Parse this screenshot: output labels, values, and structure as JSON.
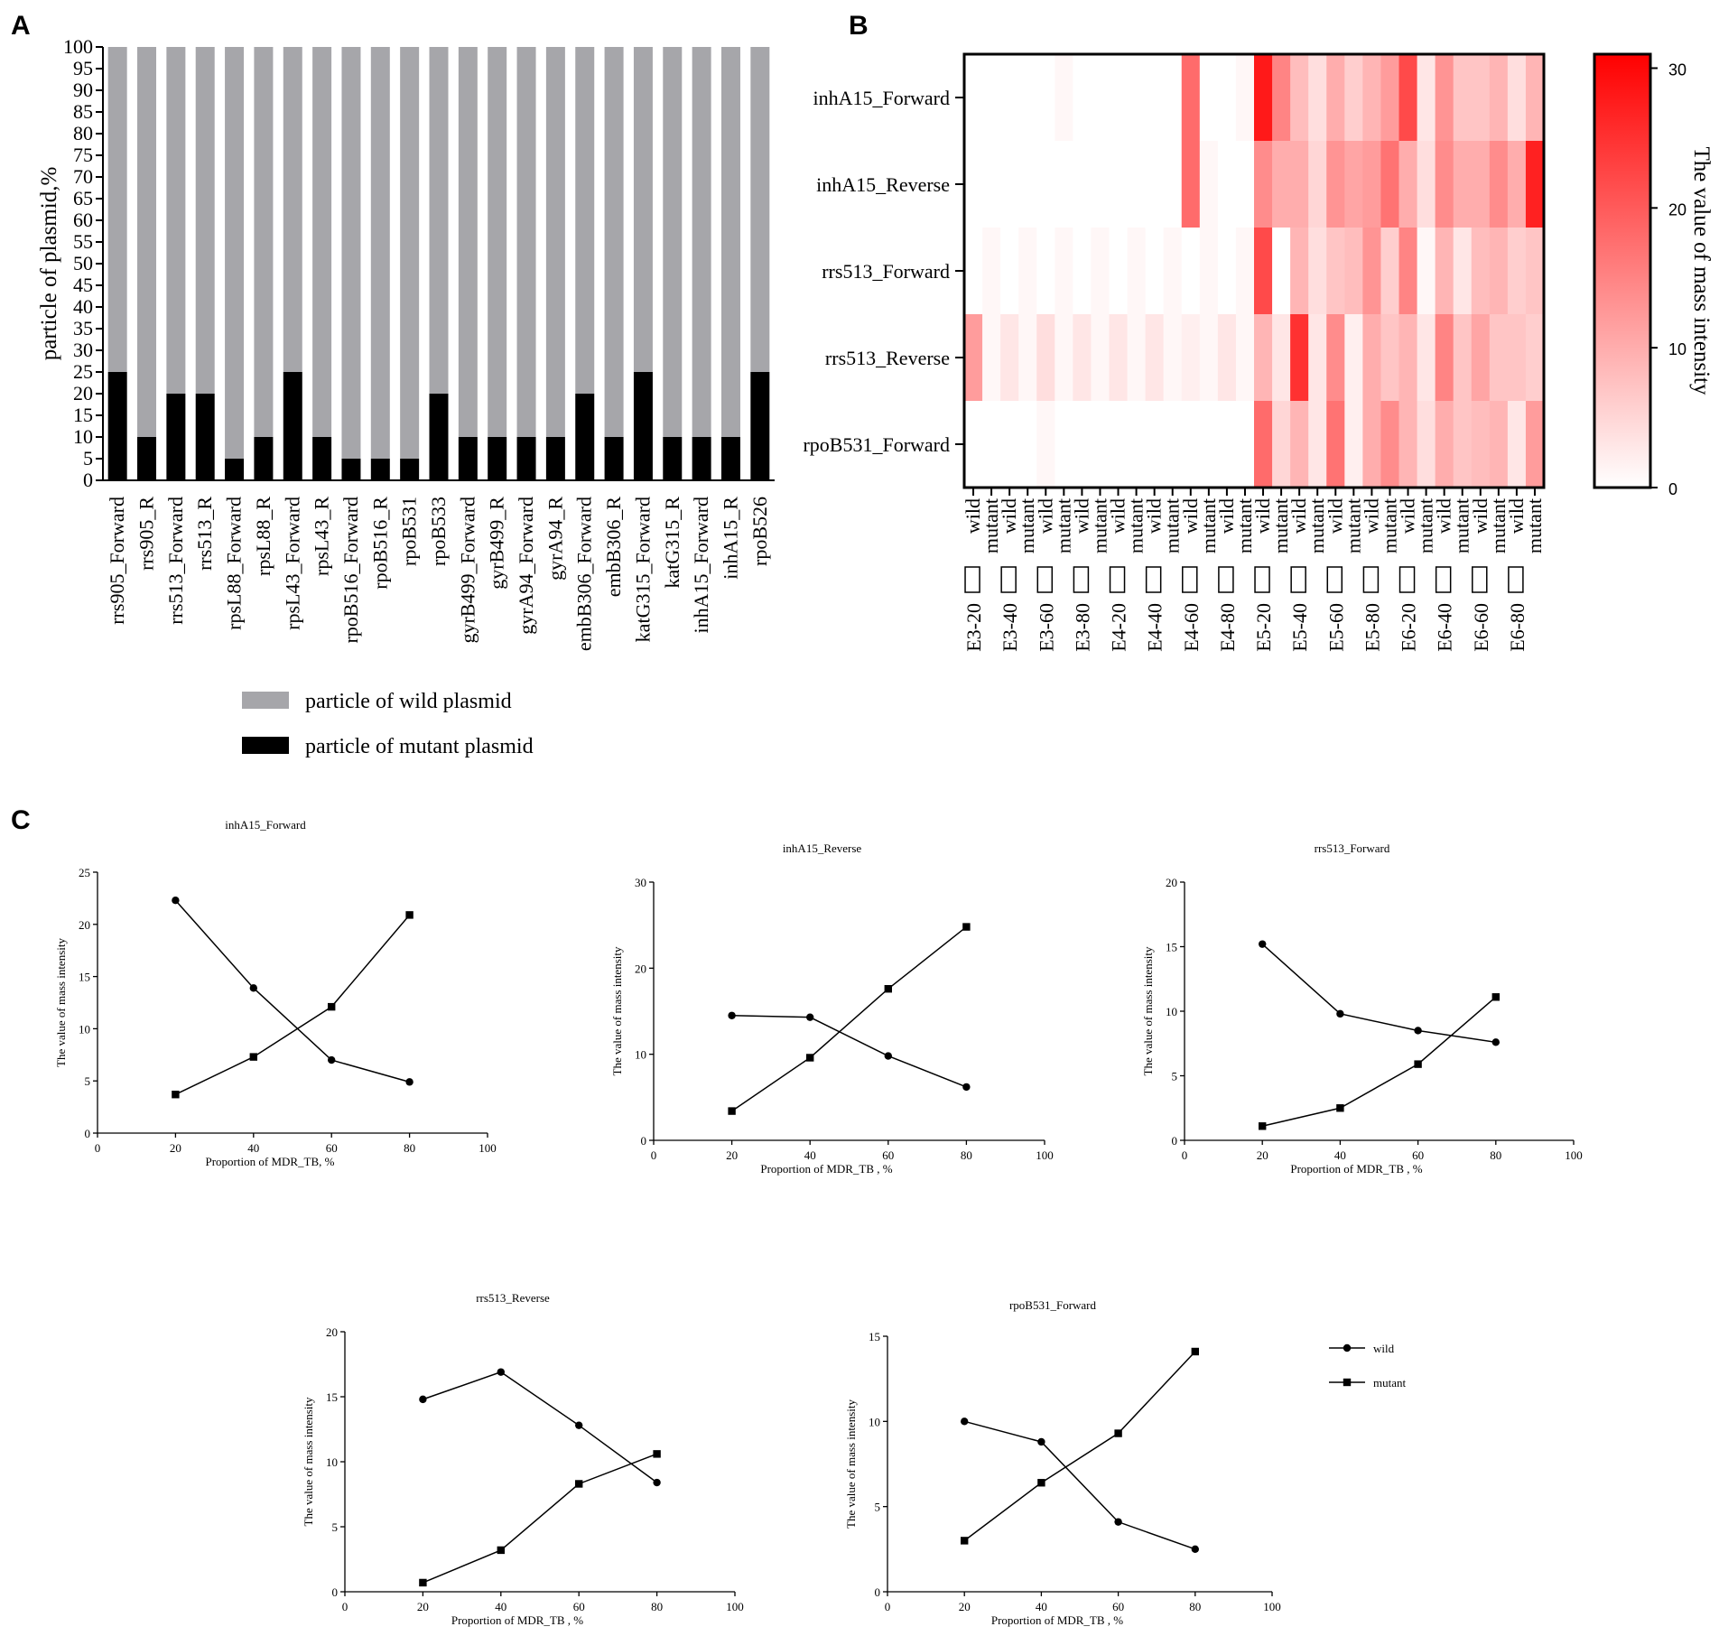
{
  "panel_labels": [
    "A",
    "B",
    "C"
  ],
  "colors": {
    "wild_bar": "#a6a6aa",
    "mutant_bar": "#000000",
    "heat_low": "#ffffff",
    "heat_high": "#ff0000"
  },
  "chart_data": [
    {
      "id": "A",
      "type": "bar",
      "stacked": true,
      "ylabel": "particle of plasmid,%",
      "ylim": [
        0,
        100
      ],
      "yticks": [
        0,
        5,
        10,
        15,
        20,
        25,
        30,
        35,
        40,
        45,
        50,
        55,
        60,
        65,
        70,
        75,
        80,
        85,
        90,
        95,
        100
      ],
      "categories": [
        "rrs905_Forward",
        "rrs905_R",
        "rrs513_Forward",
        "rrs513_R",
        "rpsL88_Forward",
        "rpsL88_R",
        "rpsL43_Forward",
        "rpsL43_R",
        "rpoB516_Forward",
        "rpoB516_R",
        "rpoB531",
        "rpoB533",
        "gyrB499_Forward",
        "gyrB499_R",
        "gyrA94_Forward",
        "gyrA94_R",
        "embB306_Forward",
        "embB306_R",
        "katG315_Forward",
        "katG315_R",
        "inhA15_Forward",
        "inhA15_R",
        "rpoB526"
      ],
      "series": [
        {
          "name": "particle of mutant plasmid",
          "values": [
            25,
            10,
            20,
            20,
            5,
            10,
            25,
            10,
            5,
            5,
            5,
            20,
            10,
            10,
            10,
            10,
            20,
            10,
            25,
            10,
            10,
            10,
            25
          ]
        },
        {
          "name": "particle of wild plasmid",
          "values": [
            75,
            90,
            80,
            80,
            95,
            90,
            75,
            90,
            95,
            95,
            95,
            80,
            90,
            90,
            90,
            90,
            80,
            90,
            75,
            90,
            90,
            90,
            75
          ]
        }
      ],
      "legend": [
        "particle of wild plasmid",
        "particle of mutant plasmid"
      ]
    },
    {
      "id": "B",
      "type": "heatmap",
      "rows": [
        "inhA15_Forward",
        "inhA15_Reverse",
        "rrs513_Forward",
        "rrs513_Reverse",
        "rpoB531_Forward"
      ],
      "columns": [
        "E3-20 wild",
        "E3-20 mutant",
        "E3-40 wild",
        "E3-40 mutant",
        "E3-60 wild",
        "E3-60 mutant",
        "E3-80 wild",
        "E3-80 mutant",
        "E4-20 wild",
        "E4-20 mutant",
        "E4-40 wild",
        "E4-40 mutant",
        "E4-60 wild",
        "E4-60 mutant",
        "E4-80 wild",
        "E4-80 mutant",
        "E5-20 wild",
        "E5-20 mutant",
        "E5-40 wild",
        "E5-40 mutant",
        "E5-60 wild",
        "E5-60 mutant",
        "E5-80 wild",
        "E5-80 mutant",
        "E6-20 wild",
        "E6-20 mutant",
        "E6-40 wild",
        "E6-40 mutant",
        "E6-60 wild",
        "E6-60 mutant",
        "E6-80 wild",
        "E6-80 mutant"
      ],
      "col_labels": [
        "wild",
        "mutant",
        "wild",
        "mutant",
        "wild",
        "mutant",
        "wild",
        "mutant",
        "wild",
        "mutant",
        "wild",
        "mutant",
        "wild",
        "mutant",
        "wild",
        "mutant",
        "wild",
        "mutant",
        "wild",
        "mutant",
        "wild",
        "mutant",
        "wild",
        "mutant",
        "wild",
        "mutant",
        "wild",
        "mutant",
        "wild",
        "mutant",
        "wild",
        "mutant"
      ],
      "group_labels": [
        "E3-20",
        "E3-40",
        "E3-60",
        "E3-80",
        "E4-20",
        "E4-40",
        "E4-60",
        "E4-80",
        "E5-20",
        "E5-40",
        "E5-60",
        "E5-80",
        "E6-20",
        "E6-40",
        "E6-60",
        "E6-80"
      ],
      "values": [
        [
          0,
          0,
          0,
          0,
          0,
          1,
          0,
          0,
          0,
          0,
          0,
          0,
          18,
          0,
          0,
          1,
          28,
          15,
          8,
          4,
          10,
          6,
          9,
          12,
          22,
          3,
          13,
          7,
          7,
          9,
          4,
          9
        ],
        [
          0,
          0,
          0,
          0,
          0,
          0,
          0,
          0,
          0,
          0,
          0,
          0,
          18,
          1,
          0,
          0,
          14,
          10,
          10,
          5,
          13,
          11,
          12,
          17,
          10,
          4,
          14,
          10,
          10,
          14,
          10,
          27
        ],
        [
          0,
          1,
          0,
          1,
          0,
          1,
          0,
          1,
          0,
          1,
          0,
          1,
          0,
          1,
          0,
          1,
          22,
          0,
          9,
          4,
          7,
          8,
          13,
          6,
          15,
          1,
          9,
          3,
          8,
          9,
          6,
          7
        ],
        [
          12,
          1,
          3,
          1,
          4,
          1,
          3,
          1,
          3,
          1,
          3,
          1,
          2,
          1,
          3,
          1,
          9,
          3,
          25,
          3,
          14,
          2,
          10,
          7,
          9,
          3,
          15,
          7,
          11,
          7,
          7,
          6
        ],
        [
          0,
          0,
          0,
          0,
          1,
          0,
          0,
          0,
          0,
          0,
          0,
          0,
          0,
          0,
          0,
          0,
          18,
          5,
          9,
          3,
          17,
          2,
          10,
          14,
          9,
          4,
          10,
          7,
          8,
          9,
          3,
          12
        ]
      ],
      "colorbar": {
        "label": "The value of mass intensity",
        "range": [
          0,
          31
        ],
        "ticks": [
          0,
          10,
          20,
          30
        ]
      }
    },
    {
      "id": "C1",
      "type": "line",
      "title": "inhA15_Forward",
      "xlabel": "Proportion of MDR_TB, %",
      "ylabel": "The value of mass intensity",
      "xlim": [
        0,
        100
      ],
      "ylim": [
        0,
        25
      ],
      "xticks": [
        0,
        20,
        40,
        60,
        80,
        100
      ],
      "yticks": [
        0,
        5,
        10,
        15,
        20,
        25
      ],
      "x": [
        20,
        40,
        60,
        80
      ],
      "series": [
        {
          "name": "wild",
          "values": [
            22.3,
            13.9,
            7.0,
            4.9
          ]
        },
        {
          "name": "mutant",
          "values": [
            3.7,
            7.3,
            12.1,
            20.9
          ]
        }
      ]
    },
    {
      "id": "C2",
      "type": "line",
      "title": "inhA15_Reverse",
      "xlabel": "Proportion of MDR_TB , %",
      "ylabel": "The value of mass intensity",
      "xlim": [
        0,
        100
      ],
      "ylim": [
        0,
        30
      ],
      "xticks": [
        0,
        20,
        40,
        60,
        80,
        100
      ],
      "yticks": [
        0,
        10,
        20,
        30
      ],
      "x": [
        20,
        40,
        60,
        80
      ],
      "series": [
        {
          "name": "wild",
          "values": [
            14.5,
            14.3,
            9.8,
            6.2
          ]
        },
        {
          "name": "mutant",
          "values": [
            3.4,
            9.6,
            17.6,
            24.8
          ]
        }
      ]
    },
    {
      "id": "C3",
      "type": "line",
      "title": "rrs513_Forward",
      "xlabel": "Proportion of MDR_TB , %",
      "ylabel": "The value of mass intensity",
      "xlim": [
        0,
        100
      ],
      "ylim": [
        0,
        20
      ],
      "xticks": [
        0,
        20,
        40,
        60,
        80,
        100
      ],
      "yticks": [
        0,
        5,
        10,
        15,
        20
      ],
      "x": [
        20,
        40,
        60,
        80
      ],
      "series": [
        {
          "name": "wild",
          "values": [
            15.2,
            9.8,
            8.5,
            7.6
          ]
        },
        {
          "name": "mutant",
          "values": [
            1.1,
            2.5,
            5.9,
            11.1
          ]
        }
      ]
    },
    {
      "id": "C4",
      "type": "line",
      "title": "rrs513_Reverse",
      "xlabel": "Proportion of MDR_TB , %",
      "ylabel": "The value of mass intensity",
      "xlim": [
        0,
        100
      ],
      "ylim": [
        0,
        20
      ],
      "xticks": [
        0,
        20,
        40,
        60,
        80,
        100
      ],
      "yticks": [
        0,
        5,
        10,
        15,
        20
      ],
      "x": [
        20,
        40,
        60,
        80
      ],
      "series": [
        {
          "name": "wild",
          "values": [
            14.8,
            16.9,
            12.8,
            8.4
          ]
        },
        {
          "name": "mutant",
          "values": [
            0.7,
            3.2,
            8.3,
            10.6
          ]
        }
      ]
    },
    {
      "id": "C5",
      "type": "line",
      "title": "rpoB531_Forward",
      "xlabel": "Proportion of MDR_TB , %",
      "ylabel": "The value of mass intensity",
      "xlim": [
        0,
        100
      ],
      "ylim": [
        0,
        15
      ],
      "xticks": [
        0,
        20,
        40,
        60,
        80,
        100
      ],
      "yticks": [
        0,
        5,
        10,
        15
      ],
      "x": [
        20,
        40,
        60,
        80
      ],
      "series": [
        {
          "name": "wild",
          "values": [
            10.0,
            8.8,
            4.1,
            2.5
          ]
        },
        {
          "name": "mutant",
          "values": [
            3.0,
            6.4,
            9.3,
            14.1
          ]
        }
      ]
    }
  ],
  "line_legend": [
    "wild",
    "mutant"
  ]
}
